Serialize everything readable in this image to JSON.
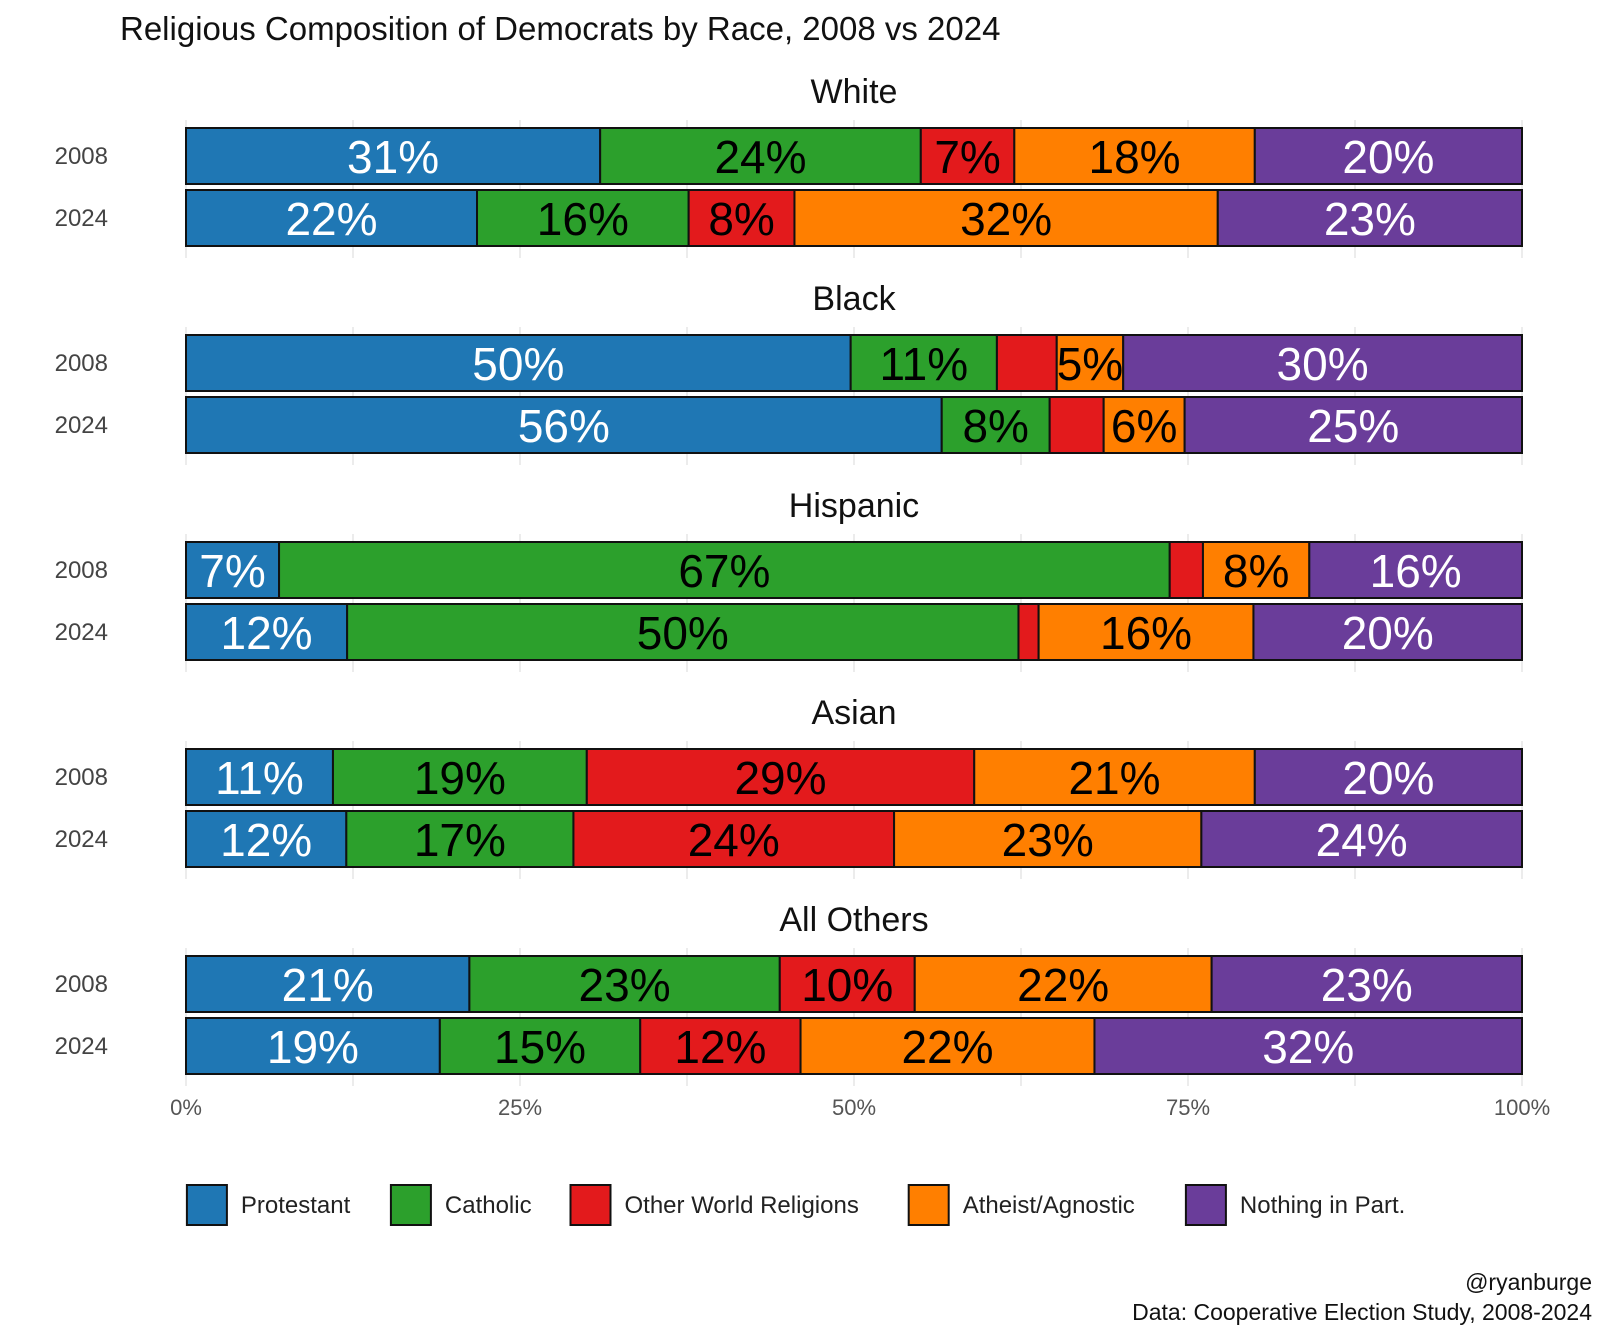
{
  "chart_data": {
    "type": "bar",
    "orientation": "horizontal",
    "stacked": "percent",
    "title": "Religious Composition of Democrats by Race, 2008 vs 2024",
    "categories": [
      "Protestant",
      "Catholic",
      "Other World Religions",
      "Atheist/Agnostic",
      "Nothing in Part."
    ],
    "colors": [
      "#1f77b4",
      "#2ca02c",
      "#e31a1c",
      "#ff7f00",
      "#6a3d9a"
    ],
    "label_colors": [
      "#ffffff",
      "#000000",
      "#000000",
      "#000000",
      "#ffffff"
    ],
    "facets": [
      {
        "name": "White",
        "rows": [
          {
            "year": "2008",
            "values": [
              31,
              24,
              7,
              18,
              20
            ],
            "labels": [
              "31%",
              "24%",
              "7%",
              "18%",
              "20%"
            ]
          },
          {
            "year": "2024",
            "values": [
              22,
              16,
              8,
              32,
              23
            ],
            "labels": [
              "22%",
              "16%",
              "8%",
              "32%",
              "23%"
            ]
          }
        ]
      },
      {
        "name": "Black",
        "rows": [
          {
            "year": "2008",
            "values": [
              50,
              11,
              4.5,
              5,
              30
            ],
            "labels": [
              "50%",
              "11%",
              "",
              "5%",
              "30%"
            ]
          },
          {
            "year": "2024",
            "values": [
              56,
              8,
              4,
              6,
              25
            ],
            "labels": [
              "56%",
              "8%",
              "",
              "6%",
              "25%"
            ]
          }
        ]
      },
      {
        "name": "Hispanic",
        "rows": [
          {
            "year": "2008",
            "values": [
              7,
              67,
              2.5,
              8,
              16
            ],
            "labels": [
              "7%",
              "67%",
              "",
              "8%",
              "16%"
            ]
          },
          {
            "year": "2024",
            "values": [
              12,
              50,
              1.5,
              16,
              20
            ],
            "labels": [
              "12%",
              "50%",
              "",
              "16%",
              "20%"
            ]
          }
        ]
      },
      {
        "name": "Asian",
        "rows": [
          {
            "year": "2008",
            "values": [
              11,
              19,
              29,
              21,
              20
            ],
            "labels": [
              "11%",
              "19%",
              "29%",
              "21%",
              "20%"
            ]
          },
          {
            "year": "2024",
            "values": [
              12,
              17,
              24,
              23,
              24
            ],
            "labels": [
              "12%",
              "17%",
              "24%",
              "23%",
              "24%"
            ]
          }
        ]
      },
      {
        "name": "All Others",
        "rows": [
          {
            "year": "2008",
            "values": [
              21,
              23,
              10,
              22,
              23
            ],
            "labels": [
              "21%",
              "23%",
              "10%",
              "22%",
              "23%"
            ]
          },
          {
            "year": "2024",
            "values": [
              19,
              15,
              12,
              22,
              32
            ],
            "labels": [
              "19%",
              "15%",
              "12%",
              "22%",
              "32%"
            ]
          }
        ]
      }
    ],
    "x_ticks": [
      "0%",
      "25%",
      "50%",
      "75%",
      "100%"
    ],
    "xlim": [
      0,
      100
    ],
    "grid": true,
    "legend_position": "bottom",
    "caption": [
      "@ryanburge",
      "Data: Cooperative Election Study, 2008-2024"
    ]
  }
}
